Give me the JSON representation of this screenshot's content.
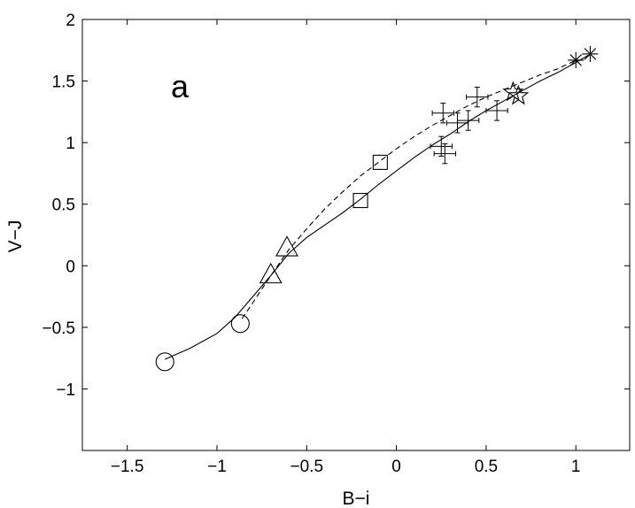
{
  "chart_data": {
    "type": "scatter",
    "title": "",
    "xlabel": "B−i",
    "ylabel": "V−J",
    "xlim": [
      -1.75,
      1.3
    ],
    "ylim": [
      -1.5,
      2.0
    ],
    "grid": false,
    "legend": "none",
    "x_ticks": [
      -1.5,
      -1.0,
      -0.5,
      0,
      0.5,
      1.0
    ],
    "x_tick_labels": [
      "−1.5",
      "−1",
      "−0.5",
      "0",
      "0.5",
      "1"
    ],
    "y_ticks": [
      -1.0,
      -0.5,
      0,
      0.5,
      1.0,
      1.5,
      2.0
    ],
    "y_tick_labels": [
      "−1",
      "−0.5",
      "0",
      "0.5",
      "1",
      "1.5",
      "2"
    ],
    "annotation": "a",
    "curves": [
      {
        "style": "solid",
        "x": [
          -1.29,
          -1.15,
          -1.0,
          -0.9,
          -0.8,
          -0.7,
          -0.6,
          -0.5,
          -0.4,
          -0.3,
          -0.2,
          -0.1,
          0.0,
          0.1,
          0.2,
          0.3,
          0.4,
          0.5,
          0.6,
          0.7,
          0.8,
          0.9,
          1.0,
          1.07
        ],
        "y": [
          -0.76,
          -0.67,
          -0.55,
          -0.42,
          -0.25,
          -0.08,
          0.1,
          0.23,
          0.33,
          0.43,
          0.54,
          0.66,
          0.77,
          0.88,
          0.98,
          1.07,
          1.17,
          1.26,
          1.34,
          1.42,
          1.5,
          1.57,
          1.65,
          1.71
        ]
      },
      {
        "style": "dashed",
        "x": [
          -0.86,
          -0.8,
          -0.7,
          -0.6,
          -0.5,
          -0.4,
          -0.3,
          -0.2,
          -0.1,
          0.0,
          0.1,
          0.2,
          0.3,
          0.4,
          0.5,
          0.6,
          0.7,
          0.8,
          0.9,
          1.0
        ],
        "y": [
          -0.43,
          -0.3,
          -0.08,
          0.13,
          0.3,
          0.46,
          0.6,
          0.73,
          0.84,
          0.95,
          1.05,
          1.14,
          1.22,
          1.3,
          1.37,
          1.43,
          1.49,
          1.55,
          1.6,
          1.67
        ]
      }
    ],
    "markers": [
      {
        "shape": "circle",
        "x": -1.29,
        "y": -0.78
      },
      {
        "shape": "circle",
        "x": -0.87,
        "y": -0.47
      },
      {
        "shape": "triangle",
        "x": -0.7,
        "y": -0.07
      },
      {
        "shape": "triangle",
        "x": -0.61,
        "y": 0.15
      },
      {
        "shape": "square",
        "x": -0.2,
        "y": 0.53
      },
      {
        "shape": "square",
        "x": -0.09,
        "y": 0.84
      },
      {
        "shape": "star",
        "x": 0.65,
        "y": 1.41
      },
      {
        "shape": "star",
        "x": 0.68,
        "y": 1.38
      },
      {
        "shape": "asterisk",
        "x": 1.0,
        "y": 1.67
      },
      {
        "shape": "asterisk",
        "x": 1.08,
        "y": 1.72
      }
    ],
    "error_points": [
      {
        "x": 0.25,
        "y": 0.97,
        "xerr": 0.06,
        "yerr": 0.08
      },
      {
        "x": 0.27,
        "y": 0.91,
        "xerr": 0.06,
        "yerr": 0.08
      },
      {
        "x": 0.26,
        "y": 1.24,
        "xerr": 0.06,
        "yerr": 0.08
      },
      {
        "x": 0.34,
        "y": 1.16,
        "xerr": 0.06,
        "yerr": 0.08
      },
      {
        "x": 0.4,
        "y": 1.18,
        "xerr": 0.06,
        "yerr": 0.08
      },
      {
        "x": 0.45,
        "y": 1.37,
        "xerr": 0.06,
        "yerr": 0.08
      },
      {
        "x": 0.56,
        "y": 1.26,
        "xerr": 0.06,
        "yerr": 0.08
      }
    ]
  }
}
